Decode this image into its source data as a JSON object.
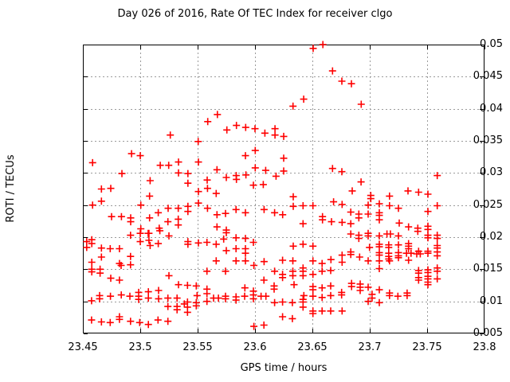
{
  "page": {
    "title": "Day 026 of 2016, Rate Of TEC Index for receiver clgo"
  },
  "chart_data": {
    "type": "scatter",
    "title": "Day 026 of 2016, Rate Of TEC Index for receiver clgo",
    "xlabel": "GPS time / hours",
    "ylabel": "ROTI / TECUs",
    "xlim": [
      23.45,
      23.8
    ],
    "ylim": [
      0.005,
      0.05
    ],
    "xtick_labels": [
      "23.45",
      "23.5",
      "23.55",
      "23.6",
      "23.65",
      "23.7",
      "23.75",
      "23.8"
    ],
    "ytick_labels": [
      "0.005",
      "0.01",
      "0.015",
      "0.02",
      "0.025",
      "0.03",
      "0.035",
      "0.04",
      "0.045",
      "0.05"
    ],
    "grid": true,
    "legend": "none",
    "marker": "plus",
    "marker_color": "#ff0000",
    "grid_color": "#9b9b9b",
    "border_color": "#000000",
    "points": [
      [
        23.5262,
        0.0359
      ],
      [
        23.4924,
        0.033
      ],
      [
        23.5,
        0.0327
      ],
      [
        23.4585,
        0.0316
      ],
      [
        23.5174,
        0.0312
      ],
      [
        23.5248,
        0.0312
      ],
      [
        23.5333,
        0.0317
      ],
      [
        23.5333,
        0.03
      ],
      [
        23.484,
        0.0299
      ],
      [
        23.5086,
        0.0288
      ],
      [
        23.4743,
        0.0276
      ],
      [
        23.5672,
        0.0391
      ],
      [
        23.5588,
        0.038
      ],
      [
        23.5755,
        0.0367
      ],
      [
        23.5838,
        0.0374
      ],
      [
        23.5919,
        0.0371
      ],
      [
        23.6,
        0.0369
      ],
      [
        23.6086,
        0.0362
      ],
      [
        23.6174,
        0.0369
      ],
      [
        23.6174,
        0.0359
      ],
      [
        23.5505,
        0.0349
      ],
      [
        23.6002,
        0.0335
      ],
      [
        23.5917,
        0.0327
      ],
      [
        23.5507,
        0.0317
      ],
      [
        23.5669,
        0.0305
      ],
      [
        23.6002,
        0.0308
      ],
      [
        23.6093,
        0.0304
      ],
      [
        23.5415,
        0.0299
      ],
      [
        23.575,
        0.0293
      ],
      [
        23.5836,
        0.0296
      ],
      [
        23.5838,
        0.029
      ],
      [
        23.5921,
        0.0297
      ],
      [
        23.6183,
        0.0295
      ],
      [
        23.5415,
        0.0284
      ],
      [
        23.5583,
        0.0289
      ],
      [
        23.5986,
        0.0281
      ],
      [
        23.6072,
        0.0282
      ],
      [
        23.6592,
        0.05
      ],
      [
        23.6507,
        0.0494
      ],
      [
        23.6676,
        0.0459
      ],
      [
        23.6757,
        0.0443
      ],
      [
        23.684,
        0.0439
      ],
      [
        23.6424,
        0.0415
      ],
      [
        23.6331,
        0.0404
      ],
      [
        23.6926,
        0.0407
      ],
      [
        23.625,
        0.0357
      ],
      [
        23.625,
        0.0323
      ],
      [
        23.625,
        0.0303
      ],
      [
        23.6676,
        0.0307
      ],
      [
        23.6757,
        0.0302
      ],
      [
        23.6924,
        0.0286
      ],
      [
        23.7588,
        0.0296
      ],
      [
        23.4662,
        0.0275
      ],
      [
        23.5081,
        0.0264
      ],
      [
        23.4585,
        0.025
      ],
      [
        23.4662,
        0.0256
      ],
      [
        23.5005,
        0.025
      ],
      [
        23.5243,
        0.0245
      ],
      [
        23.5331,
        0.0245
      ],
      [
        23.475,
        0.0232
      ],
      [
        23.4836,
        0.0232
      ],
      [
        23.4917,
        0.023
      ],
      [
        23.4917,
        0.0224
      ],
      [
        23.5081,
        0.023
      ],
      [
        23.5157,
        0.0238
      ],
      [
        23.5241,
        0.0224
      ],
      [
        23.5331,
        0.0228
      ],
      [
        23.5331,
        0.0219
      ],
      [
        23.5165,
        0.0214
      ],
      [
        23.5005,
        0.0213
      ],
      [
        23.5069,
        0.0206
      ],
      [
        23.4915,
        0.0203
      ],
      [
        23.4533,
        0.0193
      ],
      [
        23.4533,
        0.0184
      ],
      [
        23.5,
        0.0206
      ],
      [
        23.5076,
        0.0206
      ],
      [
        23.5171,
        0.021
      ],
      [
        23.525,
        0.0202
      ],
      [
        23.5,
        0.0193
      ],
      [
        23.5076,
        0.0195
      ],
      [
        23.5086,
        0.0187
      ],
      [
        23.5157,
        0.019
      ],
      [
        23.4578,
        0.0196
      ],
      [
        23.4578,
        0.019
      ],
      [
        23.4662,
        0.0183
      ],
      [
        23.4738,
        0.0182
      ],
      [
        23.4819,
        0.0182
      ],
      [
        23.4662,
        0.0169
      ],
      [
        23.4915,
        0.017
      ],
      [
        23.4578,
        0.0161
      ],
      [
        23.4819,
        0.0159
      ],
      [
        23.4833,
        0.0156
      ],
      [
        23.4915,
        0.0157
      ],
      [
        23.4578,
        0.015
      ],
      [
        23.4578,
        0.0146
      ],
      [
        23.465,
        0.015
      ],
      [
        23.465,
        0.0144
      ],
      [
        23.4743,
        0.0136
      ],
      [
        23.4819,
        0.0133
      ],
      [
        23.525,
        0.014
      ],
      [
        23.5333,
        0.0126
      ],
      [
        23.4576,
        0.0101
      ],
      [
        23.4646,
        0.0109
      ],
      [
        23.4646,
        0.0104
      ],
      [
        23.474,
        0.0108
      ],
      [
        23.4835,
        0.011
      ],
      [
        23.491,
        0.0108
      ],
      [
        23.4986,
        0.0114
      ],
      [
        23.4986,
        0.0108
      ],
      [
        23.4986,
        0.0103
      ],
      [
        23.5071,
        0.0115
      ],
      [
        23.5071,
        0.0105
      ],
      [
        23.516,
        0.0117
      ],
      [
        23.516,
        0.0104
      ],
      [
        23.5241,
        0.0105
      ],
      [
        23.5241,
        0.0092
      ],
      [
        23.5321,
        0.0105
      ],
      [
        23.5321,
        0.0092
      ],
      [
        23.5321,
        0.0087
      ],
      [
        23.4576,
        0.0071
      ],
      [
        23.4662,
        0.0068
      ],
      [
        23.4738,
        0.0067
      ],
      [
        23.4819,
        0.0076
      ],
      [
        23.4819,
        0.0072
      ],
      [
        23.4915,
        0.0069
      ],
      [
        23.4995,
        0.0067
      ],
      [
        23.5071,
        0.0064
      ],
      [
        23.5155,
        0.0071
      ],
      [
        23.5241,
        0.0069
      ],
      [
        23.5507,
        0.0271
      ],
      [
        23.5586,
        0.0276
      ],
      [
        23.5662,
        0.0268
      ],
      [
        23.5507,
        0.0253
      ],
      [
        23.5415,
        0.0248
      ],
      [
        23.5415,
        0.024
      ],
      [
        23.5586,
        0.0245
      ],
      [
        23.5669,
        0.0235
      ],
      [
        23.5743,
        0.0237
      ],
      [
        23.5835,
        0.0243
      ],
      [
        23.5917,
        0.0238
      ],
      [
        23.6079,
        0.0243
      ],
      [
        23.6171,
        0.0238
      ],
      [
        23.5669,
        0.0216
      ],
      [
        23.575,
        0.0211
      ],
      [
        23.575,
        0.0207
      ],
      [
        23.5727,
        0.0197
      ],
      [
        23.5835,
        0.0199
      ],
      [
        23.5917,
        0.0198
      ],
      [
        23.5415,
        0.0193
      ],
      [
        23.5415,
        0.0189
      ],
      [
        23.5507,
        0.0191
      ],
      [
        23.5581,
        0.0192
      ],
      [
        23.5662,
        0.0189
      ],
      [
        23.5986,
        0.0192
      ],
      [
        23.575,
        0.0179
      ],
      [
        23.5835,
        0.0182
      ],
      [
        23.5917,
        0.0182
      ],
      [
        23.5917,
        0.0175
      ],
      [
        23.5662,
        0.0163
      ],
      [
        23.5835,
        0.0163
      ],
      [
        23.5917,
        0.0163
      ],
      [
        23.599,
        0.0156
      ],
      [
        23.6079,
        0.0162
      ],
      [
        23.5581,
        0.0147
      ],
      [
        23.5743,
        0.0147
      ],
      [
        23.6171,
        0.0147
      ],
      [
        23.5412,
        0.0125
      ],
      [
        23.5488,
        0.0124
      ],
      [
        23.6078,
        0.0133
      ],
      [
        23.5912,
        0.0121
      ],
      [
        23.5986,
        0.0116
      ],
      [
        23.5986,
        0.011
      ],
      [
        23.6167,
        0.0124
      ],
      [
        23.6167,
        0.0119
      ],
      [
        23.5581,
        0.0119
      ],
      [
        23.5581,
        0.0112
      ],
      [
        23.5495,
        0.0109
      ],
      [
        23.5581,
        0.01
      ],
      [
        23.5639,
        0.0105
      ],
      [
        23.5681,
        0.0105
      ],
      [
        23.5743,
        0.0108
      ],
      [
        23.5743,
        0.0104
      ],
      [
        23.5835,
        0.0107
      ],
      [
        23.5835,
        0.0102
      ],
      [
        23.591,
        0.0108
      ],
      [
        23.5986,
        0.0104
      ],
      [
        23.6053,
        0.0108
      ],
      [
        23.6095,
        0.0108
      ],
      [
        23.5384,
        0.0096
      ],
      [
        23.5412,
        0.0099
      ],
      [
        23.5412,
        0.0091
      ],
      [
        23.5488,
        0.0098
      ],
      [
        23.5488,
        0.0093
      ],
      [
        23.6171,
        0.0098
      ],
      [
        23.5412,
        0.0083
      ],
      [
        23.599,
        0.0061
      ],
      [
        23.6078,
        0.0063
      ],
      [
        23.6333,
        0.0263
      ],
      [
        23.6333,
        0.0248
      ],
      [
        23.6419,
        0.0249
      ],
      [
        23.6505,
        0.0249
      ],
      [
        23.6241,
        0.0235
      ],
      [
        23.6847,
        0.0272
      ],
      [
        23.6685,
        0.0255
      ],
      [
        23.6759,
        0.0251
      ],
      [
        23.7009,
        0.0265
      ],
      [
        23.7009,
        0.026
      ],
      [
        23.6986,
        0.025
      ],
      [
        23.6835,
        0.0239
      ],
      [
        23.6905,
        0.0236
      ],
      [
        23.6905,
        0.023
      ],
      [
        23.6986,
        0.0236
      ],
      [
        23.6588,
        0.0232
      ],
      [
        23.6588,
        0.0227
      ],
      [
        23.6667,
        0.0224
      ],
      [
        23.6759,
        0.0223
      ],
      [
        23.6419,
        0.0221
      ],
      [
        23.6835,
        0.0221
      ],
      [
        23.6835,
        0.0205
      ],
      [
        23.6905,
        0.0203
      ],
      [
        23.6905,
        0.0198
      ],
      [
        23.6986,
        0.0206
      ],
      [
        23.6986,
        0.0202
      ],
      [
        23.6333,
        0.0186
      ],
      [
        23.6419,
        0.0189
      ],
      [
        23.6505,
        0.0186
      ],
      [
        23.6505,
        0.0163
      ],
      [
        23.6662,
        0.0165
      ],
      [
        23.6759,
        0.0172
      ],
      [
        23.6759,
        0.0161
      ],
      [
        23.6835,
        0.0177
      ],
      [
        23.6835,
        0.0173
      ],
      [
        23.6912,
        0.0169
      ],
      [
        23.6998,
        0.0184
      ],
      [
        23.624,
        0.0164
      ],
      [
        23.633,
        0.0163
      ],
      [
        23.6585,
        0.0159
      ],
      [
        23.633,
        0.0147
      ],
      [
        23.6419,
        0.0152
      ],
      [
        23.6419,
        0.0147
      ],
      [
        23.624,
        0.0142
      ],
      [
        23.624,
        0.0137
      ],
      [
        23.633,
        0.014
      ],
      [
        23.6419,
        0.014
      ],
      [
        23.6505,
        0.0142
      ],
      [
        23.6585,
        0.0147
      ],
      [
        23.666,
        0.0148
      ],
      [
        23.634,
        0.0126
      ],
      [
        23.6505,
        0.0123
      ],
      [
        23.6505,
        0.0118
      ],
      [
        23.6585,
        0.0121
      ],
      [
        23.666,
        0.0124
      ],
      [
        23.6426,
        0.0109
      ],
      [
        23.6505,
        0.0108
      ],
      [
        23.6585,
        0.0106
      ],
      [
        23.666,
        0.0109
      ],
      [
        23.6755,
        0.0114
      ],
      [
        23.6755,
        0.011
      ],
      [
        23.6842,
        0.0128
      ],
      [
        23.6842,
        0.0123
      ],
      [
        23.6917,
        0.0127
      ],
      [
        23.6917,
        0.0122
      ],
      [
        23.6917,
        0.0117
      ],
      [
        23.6986,
        0.0122
      ],
      [
        23.702,
        0.0111
      ],
      [
        23.702,
        0.0105
      ],
      [
        23.624,
        0.0099
      ],
      [
        23.6326,
        0.0098
      ],
      [
        23.6419,
        0.0103
      ],
      [
        23.6419,
        0.0099
      ],
      [
        23.6419,
        0.0091
      ],
      [
        23.6505,
        0.0085
      ],
      [
        23.6505,
        0.0081
      ],
      [
        23.6585,
        0.0085
      ],
      [
        23.666,
        0.0085
      ],
      [
        23.6759,
        0.0085
      ],
      [
        23.624,
        0.0076
      ],
      [
        23.6326,
        0.0073
      ],
      [
        23.6986,
        0.0163
      ],
      [
        23.6986,
        0.01
      ],
      [
        23.7333,
        0.0272
      ],
      [
        23.7426,
        0.027
      ],
      [
        23.7507,
        0.0267
      ],
      [
        23.7172,
        0.0264
      ],
      [
        23.7083,
        0.0252
      ],
      [
        23.7172,
        0.0249
      ],
      [
        23.725,
        0.0245
      ],
      [
        23.7507,
        0.024
      ],
      [
        23.7588,
        0.0249
      ],
      [
        23.7083,
        0.0238
      ],
      [
        23.7083,
        0.0234
      ],
      [
        23.7083,
        0.0227
      ],
      [
        23.7257,
        0.0222
      ],
      [
        23.7338,
        0.0216
      ],
      [
        23.7419,
        0.0214
      ],
      [
        23.7419,
        0.0209
      ],
      [
        23.7507,
        0.0217
      ],
      [
        23.7507,
        0.0212
      ],
      [
        23.7083,
        0.0202
      ],
      [
        23.715,
        0.0205
      ],
      [
        23.718,
        0.0205
      ],
      [
        23.725,
        0.0202
      ],
      [
        23.7507,
        0.0203
      ],
      [
        23.7507,
        0.0199
      ],
      [
        23.7588,
        0.0203
      ],
      [
        23.7588,
        0.0198
      ],
      [
        23.7083,
        0.0189
      ],
      [
        23.7083,
        0.0185
      ],
      [
        23.7165,
        0.0188
      ],
      [
        23.7165,
        0.0184
      ],
      [
        23.725,
        0.0188
      ],
      [
        23.7338,
        0.019
      ],
      [
        23.7338,
        0.0186
      ],
      [
        23.7338,
        0.0182
      ],
      [
        23.7426,
        0.0178
      ],
      [
        23.7507,
        0.0178
      ],
      [
        23.7588,
        0.0187
      ],
      [
        23.7588,
        0.0183
      ],
      [
        23.7083,
        0.0176
      ],
      [
        23.7083,
        0.0172
      ],
      [
        23.7165,
        0.0175
      ],
      [
        23.7165,
        0.017
      ],
      [
        23.7165,
        0.0166
      ],
      [
        23.732,
        0.0175
      ],
      [
        23.736,
        0.0175
      ],
      [
        23.741,
        0.0174
      ],
      [
        23.744,
        0.0174
      ],
      [
        23.7507,
        0.0175
      ],
      [
        23.7588,
        0.0177
      ],
      [
        23.7588,
        0.0171
      ],
      [
        23.725,
        0.0176
      ],
      [
        23.725,
        0.0171
      ],
      [
        23.725,
        0.0168
      ],
      [
        23.7083,
        0.0163
      ],
      [
        23.7172,
        0.0163
      ],
      [
        23.7338,
        0.0164
      ],
      [
        23.7083,
        0.0151
      ],
      [
        23.7426,
        0.0148
      ],
      [
        23.7426,
        0.0144
      ],
      [
        23.7507,
        0.0149
      ],
      [
        23.7507,
        0.0145
      ],
      [
        23.7588,
        0.0152
      ],
      [
        23.7588,
        0.0147
      ],
      [
        23.7426,
        0.0137
      ],
      [
        23.7426,
        0.0133
      ],
      [
        23.7507,
        0.0139
      ],
      [
        23.7507,
        0.0135
      ],
      [
        23.7507,
        0.013
      ],
      [
        23.7588,
        0.0135
      ],
      [
        23.7507,
        0.0126
      ],
      [
        23.7083,
        0.0118
      ],
      [
        23.7172,
        0.0113
      ],
      [
        23.7172,
        0.0109
      ],
      [
        23.7245,
        0.0108
      ],
      [
        23.7326,
        0.0113
      ],
      [
        23.7326,
        0.0109
      ],
      [
        23.7083,
        0.0098
      ]
    ]
  }
}
